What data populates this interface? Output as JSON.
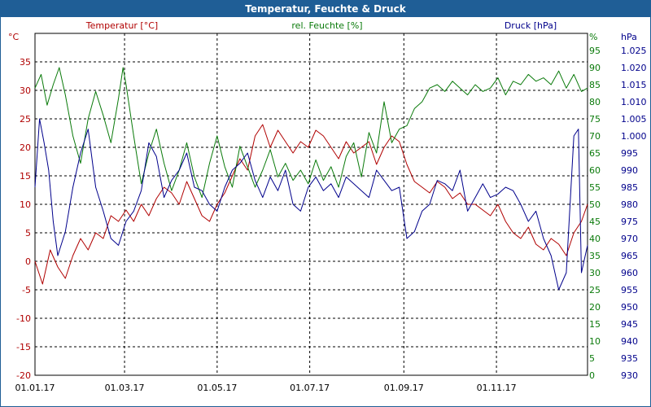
{
  "window": {
    "title": "Temperatur, Feuchte & Druck"
  },
  "colors": {
    "temperature": "#b00000",
    "humidity": "#0a7a0a",
    "pressure": "#00008b",
    "titlebar": "#1f5e96",
    "grid": "#000000"
  },
  "chart_data": {
    "type": "line",
    "title": "Temperatur, Feuchte & Druck",
    "grid": true,
    "x_ticks": [
      "01.01.17",
      "01.03.17",
      "01.05.17",
      "01.07.17",
      "01.09.17",
      "01.11.17"
    ],
    "x_tick_days": [
      0,
      59,
      120,
      181,
      243,
      304
    ],
    "x_range_days": [
      0,
      364
    ],
    "axes": {
      "left": {
        "label": "Temperatur [°C]",
        "unit": "°C",
        "ylim": [
          -20,
          40
        ],
        "ticks": [
          -20,
          -15,
          -10,
          -5,
          0,
          5,
          10,
          15,
          20,
          25,
          30,
          35
        ]
      },
      "right1": {
        "label": "rel. Feuchte [%]",
        "unit": "%",
        "ylim": [
          0,
          100
        ],
        "ticks": [
          0,
          5,
          10,
          15,
          20,
          25,
          30,
          35,
          40,
          45,
          50,
          55,
          60,
          65,
          70,
          75,
          80,
          85,
          90,
          95
        ]
      },
      "right2": {
        "label": "Druck [hPa]",
        "unit": "hPa",
        "ylim": [
          930,
          1030
        ],
        "ticks": [
          "930",
          "935",
          "940",
          "945",
          "950",
          "955",
          "960",
          "965",
          "970",
          "975",
          "980",
          "985",
          "990",
          "995",
          "1.000",
          "1.005",
          "1.010",
          "1.015",
          "1.020",
          "1.025"
        ]
      }
    },
    "series": [
      {
        "name": "Temperatur [°C]",
        "axis": "left",
        "points": [
          [
            0,
            0
          ],
          [
            5,
            -4
          ],
          [
            10,
            2
          ],
          [
            15,
            -1
          ],
          [
            20,
            -3
          ],
          [
            25,
            1
          ],
          [
            30,
            4
          ],
          [
            35,
            2
          ],
          [
            40,
            5
          ],
          [
            45,
            4
          ],
          [
            50,
            8
          ],
          [
            55,
            7
          ],
          [
            60,
            9
          ],
          [
            65,
            7
          ],
          [
            70,
            10
          ],
          [
            75,
            8
          ],
          [
            80,
            11
          ],
          [
            85,
            13
          ],
          [
            90,
            12
          ],
          [
            95,
            10
          ],
          [
            100,
            14
          ],
          [
            105,
            11
          ],
          [
            110,
            8
          ],
          [
            115,
            7
          ],
          [
            120,
            10
          ],
          [
            125,
            12
          ],
          [
            130,
            15
          ],
          [
            135,
            18
          ],
          [
            140,
            16
          ],
          [
            145,
            22
          ],
          [
            150,
            24
          ],
          [
            155,
            20
          ],
          [
            160,
            23
          ],
          [
            165,
            21
          ],
          [
            170,
            19
          ],
          [
            175,
            21
          ],
          [
            180,
            20
          ],
          [
            185,
            23
          ],
          [
            190,
            22
          ],
          [
            195,
            20
          ],
          [
            200,
            18
          ],
          [
            205,
            21
          ],
          [
            210,
            19
          ],
          [
            215,
            20
          ],
          [
            220,
            21
          ],
          [
            225,
            17
          ],
          [
            230,
            20
          ],
          [
            235,
            22
          ],
          [
            240,
            21
          ],
          [
            245,
            17
          ],
          [
            250,
            14
          ],
          [
            255,
            13
          ],
          [
            260,
            12
          ],
          [
            265,
            14
          ],
          [
            270,
            13
          ],
          [
            275,
            11
          ],
          [
            280,
            12
          ],
          [
            285,
            10
          ],
          [
            290,
            10
          ],
          [
            295,
            9
          ],
          [
            300,
            8
          ],
          [
            305,
            10
          ],
          [
            310,
            7
          ],
          [
            315,
            5
          ],
          [
            320,
            4
          ],
          [
            325,
            6
          ],
          [
            330,
            3
          ],
          [
            335,
            2
          ],
          [
            340,
            4
          ],
          [
            345,
            3
          ],
          [
            350,
            1
          ],
          [
            355,
            5
          ],
          [
            360,
            7
          ],
          [
            364,
            10
          ]
        ]
      },
      {
        "name": "rel. Feuchte [%]",
        "axis": "right1",
        "points": [
          [
            0,
            84
          ],
          [
            4,
            88
          ],
          [
            8,
            79
          ],
          [
            12,
            85
          ],
          [
            16,
            90
          ],
          [
            20,
            82
          ],
          [
            25,
            70
          ],
          [
            30,
            62
          ],
          [
            35,
            75
          ],
          [
            40,
            83
          ],
          [
            45,
            76
          ],
          [
            50,
            68
          ],
          [
            55,
            81
          ],
          [
            58,
            90
          ],
          [
            60,
            85
          ],
          [
            65,
            70
          ],
          [
            70,
            56
          ],
          [
            75,
            65
          ],
          [
            80,
            72
          ],
          [
            85,
            62
          ],
          [
            90,
            54
          ],
          [
            95,
            60
          ],
          [
            100,
            68
          ],
          [
            105,
            58
          ],
          [
            110,
            52
          ],
          [
            115,
            62
          ],
          [
            120,
            70
          ],
          [
            125,
            61
          ],
          [
            130,
            55
          ],
          [
            135,
            67
          ],
          [
            140,
            61
          ],
          [
            145,
            55
          ],
          [
            150,
            60
          ],
          [
            155,
            66
          ],
          [
            160,
            58
          ],
          [
            165,
            62
          ],
          [
            170,
            57
          ],
          [
            175,
            60
          ],
          [
            180,
            56
          ],
          [
            185,
            63
          ],
          [
            190,
            57
          ],
          [
            195,
            61
          ],
          [
            200,
            55
          ],
          [
            205,
            64
          ],
          [
            210,
            68
          ],
          [
            215,
            58
          ],
          [
            220,
            71
          ],
          [
            225,
            65
          ],
          [
            230,
            80
          ],
          [
            235,
            68
          ],
          [
            240,
            72
          ],
          [
            245,
            73
          ],
          [
            250,
            78
          ],
          [
            255,
            80
          ],
          [
            260,
            84
          ],
          [
            265,
            85
          ],
          [
            270,
            83
          ],
          [
            275,
            86
          ],
          [
            280,
            84
          ],
          [
            285,
            82
          ],
          [
            290,
            85
          ],
          [
            295,
            83
          ],
          [
            300,
            84
          ],
          [
            305,
            87
          ],
          [
            310,
            82
          ],
          [
            315,
            86
          ],
          [
            320,
            85
          ],
          [
            325,
            88
          ],
          [
            330,
            86
          ],
          [
            335,
            87
          ],
          [
            340,
            85
          ],
          [
            345,
            89
          ],
          [
            350,
            84
          ],
          [
            355,
            88
          ],
          [
            360,
            83
          ],
          [
            364,
            84
          ]
        ]
      },
      {
        "name": "Druck [hPa]",
        "axis": "right2",
        "points": [
          [
            0,
            985
          ],
          [
            3,
            1005
          ],
          [
            6,
            998
          ],
          [
            9,
            990
          ],
          [
            12,
            975
          ],
          [
            15,
            965
          ],
          [
            20,
            972
          ],
          [
            25,
            985
          ],
          [
            30,
            995
          ],
          [
            35,
            1002
          ],
          [
            40,
            985
          ],
          [
            45,
            978
          ],
          [
            50,
            970
          ],
          [
            55,
            968
          ],
          [
            60,
            975
          ],
          [
            65,
            978
          ],
          [
            70,
            984
          ],
          [
            75,
            998
          ],
          [
            80,
            994
          ],
          [
            85,
            982
          ],
          [
            90,
            987
          ],
          [
            95,
            990
          ],
          [
            100,
            995
          ],
          [
            105,
            985
          ],
          [
            110,
            984
          ],
          [
            115,
            980
          ],
          [
            120,
            978
          ],
          [
            125,
            985
          ],
          [
            130,
            990
          ],
          [
            135,
            992
          ],
          [
            140,
            995
          ],
          [
            145,
            987
          ],
          [
            150,
            982
          ],
          [
            155,
            988
          ],
          [
            160,
            984
          ],
          [
            165,
            990
          ],
          [
            170,
            980
          ],
          [
            175,
            978
          ],
          [
            180,
            985
          ],
          [
            185,
            988
          ],
          [
            190,
            984
          ],
          [
            195,
            986
          ],
          [
            200,
            982
          ],
          [
            205,
            988
          ],
          [
            210,
            986
          ],
          [
            215,
            984
          ],
          [
            220,
            982
          ],
          [
            225,
            990
          ],
          [
            230,
            987
          ],
          [
            235,
            984
          ],
          [
            240,
            985
          ],
          [
            245,
            970
          ],
          [
            250,
            972
          ],
          [
            255,
            978
          ],
          [
            260,
            980
          ],
          [
            265,
            987
          ],
          [
            270,
            986
          ],
          [
            275,
            984
          ],
          [
            280,
            990
          ],
          [
            285,
            978
          ],
          [
            290,
            982
          ],
          [
            295,
            986
          ],
          [
            300,
            982
          ],
          [
            305,
            983
          ],
          [
            310,
            985
          ],
          [
            315,
            984
          ],
          [
            320,
            980
          ],
          [
            325,
            975
          ],
          [
            330,
            978
          ],
          [
            335,
            970
          ],
          [
            340,
            965
          ],
          [
            345,
            955
          ],
          [
            350,
            960
          ],
          [
            355,
            1000
          ],
          [
            358,
            1002
          ],
          [
            360,
            960
          ],
          [
            364,
            968
          ]
        ]
      }
    ]
  }
}
